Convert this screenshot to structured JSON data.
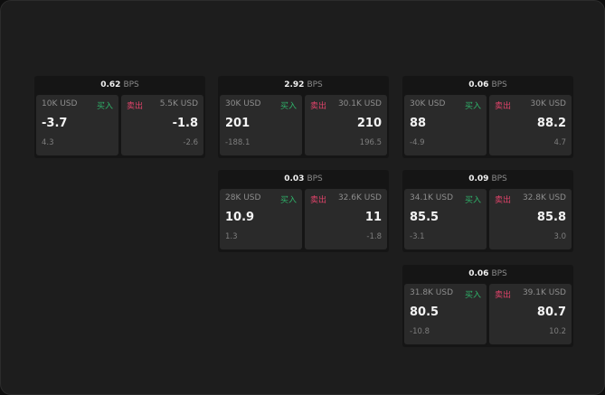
{
  "unit": "BPS",
  "buy_label": "买入",
  "sell_label": "卖出",
  "colors": {
    "buy": "#2fb36a",
    "sell": "#e0436a",
    "background": "#1d1d1d",
    "card": "#2a2a2a"
  },
  "panels": [
    {
      "spread": "0.62",
      "buy": {
        "size": "10K USD",
        "price": "-3.7",
        "change": "4.3"
      },
      "sell": {
        "size": "5.5K USD",
        "price": "-1.8",
        "change": "-2.6"
      }
    },
    {
      "spread": "2.92",
      "buy": {
        "size": "30K USD",
        "price": "201",
        "change": "-188.1"
      },
      "sell": {
        "size": "30.1K USD",
        "price": "210",
        "change": "196.5"
      }
    },
    {
      "spread": "0.06",
      "buy": {
        "size": "30K USD",
        "price": "88",
        "change": "-4.9"
      },
      "sell": {
        "size": "30K USD",
        "price": "88.2",
        "change": "4.7"
      }
    },
    {
      "spread": "0.03",
      "buy": {
        "size": "28K USD",
        "price": "10.9",
        "change": "1.3"
      },
      "sell": {
        "size": "32.6K USD",
        "price": "11",
        "change": "-1.8"
      }
    },
    {
      "spread": "0.09",
      "buy": {
        "size": "34.1K USD",
        "price": "85.5",
        "change": "-3.1"
      },
      "sell": {
        "size": "32.8K USD",
        "price": "85.8",
        "change": "3.0"
      }
    },
    {
      "spread": "0.06",
      "buy": {
        "size": "31.8K USD",
        "price": "80.5",
        "change": "-10.8"
      },
      "sell": {
        "size": "39.1K USD",
        "price": "80.7",
        "change": "10.2"
      }
    }
  ]
}
